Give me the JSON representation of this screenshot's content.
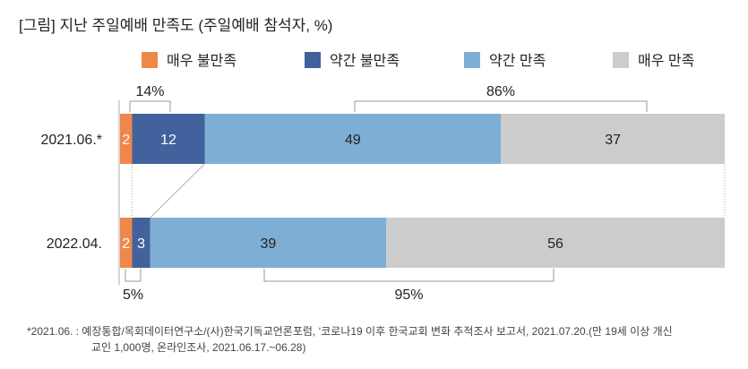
{
  "chart_data": {
    "type": "bar",
    "orientation": "horizontal-stacked",
    "title": "[그림] 지난 주일예배 만족도 (주일예배 참석자, %)",
    "categories": [
      "2021.06.*",
      "2022.04."
    ],
    "series": [
      {
        "name": "매우 불만족",
        "color": "#F0874A",
        "values": [
          2,
          2
        ]
      },
      {
        "name": "약간 불만족",
        "color": "#41629C",
        "values": [
          12,
          3
        ]
      },
      {
        "name": "약간 만족",
        "color": "#7FAED4",
        "values": [
          49,
          39
        ]
      },
      {
        "name": "매우 만족",
        "color": "#CCCCCC",
        "values": [
          37,
          56
        ]
      }
    ],
    "annotations": {
      "dissatisfied": [
        "14%",
        "5%"
      ],
      "satisfied": [
        "86%",
        "95%"
      ]
    },
    "xlim": [
      0,
      100
    ],
    "legend": "top"
  },
  "footnote": {
    "line1": "*2021.06. : 예장통합/목회데이터연구소/(사)한국기독교언론포럼, ‘코로나19 이후 한국교회 변화 추적조사 보고서, 2021.07.20.(만 19세 이상 개신",
    "line2": "교인 1,000명, 온라인조사, 2021.06.17.~06.28)"
  }
}
